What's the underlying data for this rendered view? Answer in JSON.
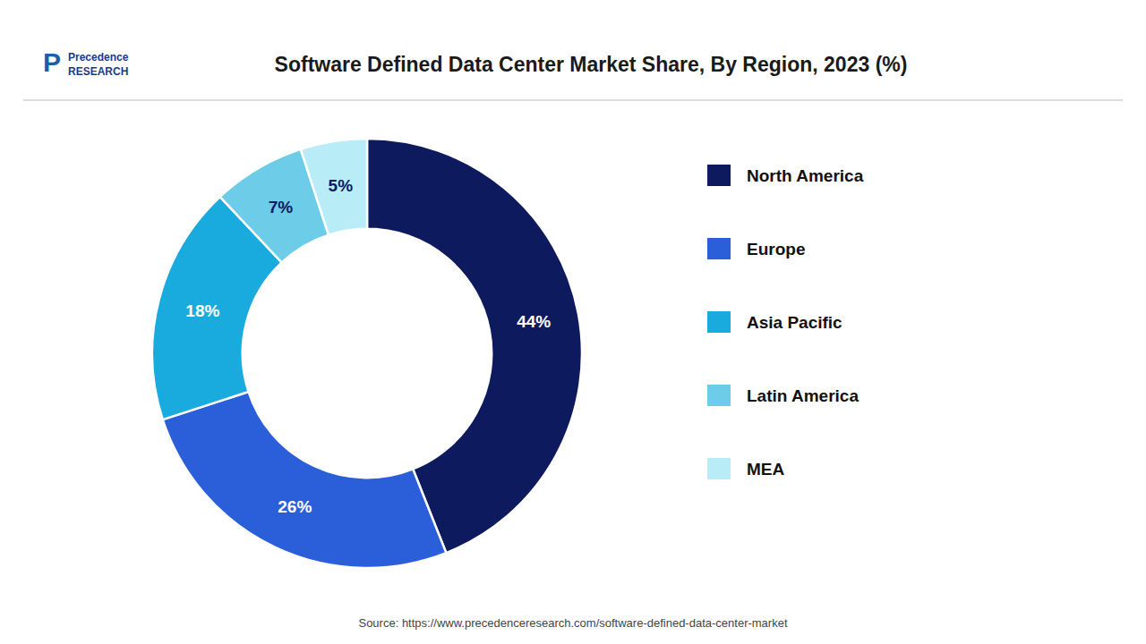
{
  "chart_data": {
    "type": "pie",
    "title": "Software Defined Data Center Market Share, By Region, 2023 (%)",
    "categories": [
      "North America",
      "Europe",
      "Asia Pacific",
      "Latin America",
      "MEA"
    ],
    "values": [
      44,
      26,
      18,
      7,
      5
    ],
    "value_labels": [
      "44%",
      "26%",
      "18%",
      "7%",
      "5%"
    ],
    "colors": [
      "#0d1b5e",
      "#2b5fd9",
      "#1aabde",
      "#6dcde8",
      "#b8ecf7"
    ],
    "data_labels": true,
    "legend": "right",
    "annotations": [
      "P",
      "Precedence\nRESEARCH",
      "Source: https://www.precedenceresearch.com/software-defined-data-center-market"
    ]
  }
}
